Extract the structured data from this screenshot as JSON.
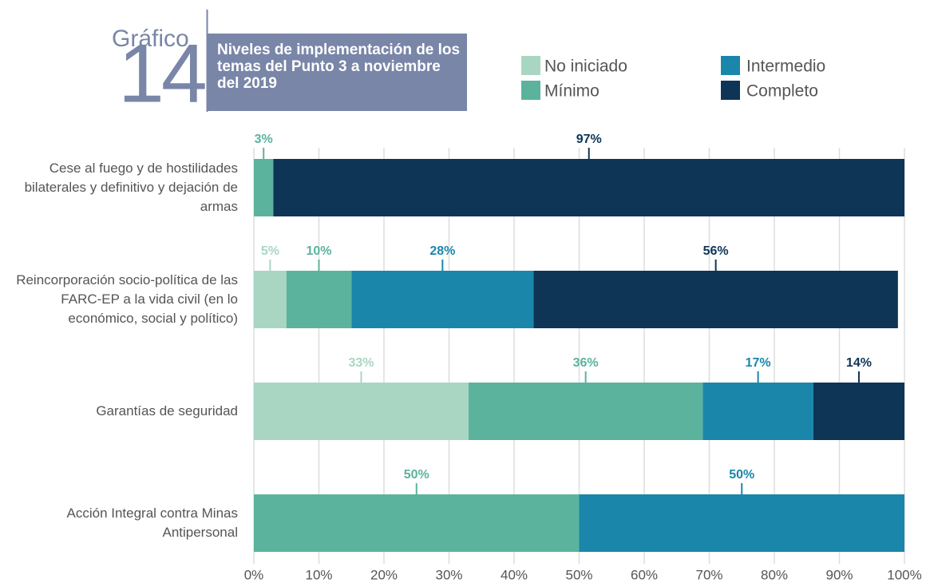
{
  "chart_data": {
    "type": "stacked-barh",
    "chart_label": "Gráfico",
    "chart_number": "14",
    "title": "Niveles de implementación de los temas del Punto 3 a noviembre del 2019",
    "categories": [
      "Cese al fuego y de hostilidades bilaterales y definitivo y dejación de armas",
      "Reincorporación socio-política de las FARC-EP a la vida civil (en lo económico, social y político)",
      "Garantías de seguridad",
      "Acción Integral contra Minas Antipersonal"
    ],
    "series": [
      {
        "name": "No iniciado",
        "color": "#a8d6c3",
        "values": [
          null,
          5,
          33,
          null
        ],
        "value_labels": [
          null,
          "5%",
          "33%",
          null
        ]
      },
      {
        "name": "Mínimo",
        "color": "#5bb39e",
        "values": [
          3,
          10,
          36,
          50
        ],
        "value_labels": [
          "3%",
          "10%",
          "36%",
          "50%"
        ]
      },
      {
        "name": "Intermedio",
        "color": "#1a87aa",
        "values": [
          null,
          28,
          17,
          50
        ],
        "value_labels": [
          null,
          "28%",
          "17%",
          "50%"
        ]
      },
      {
        "name": "Completo",
        "color": "#0f3556",
        "values": [
          97,
          56,
          14,
          null
        ],
        "value_labels": [
          "97%",
          "56%",
          "14%",
          null
        ]
      }
    ],
    "xlim": [
      0,
      100
    ],
    "xticks": [
      {
        "value": 0,
        "label": "0%"
      },
      {
        "value": 10,
        "label": "10%"
      },
      {
        "value": 20,
        "label": "20%"
      },
      {
        "value": 30,
        "label": "30%"
      },
      {
        "value": 40,
        "label": "40%"
      },
      {
        "value": 50,
        "label": "50%"
      },
      {
        "value": 60,
        "label": "60%"
      },
      {
        "value": 70,
        "label": "70%"
      },
      {
        "value": 80,
        "label": "80%"
      },
      {
        "value": 90,
        "label": "90%"
      },
      {
        "value": 100,
        "label": "100%"
      }
    ],
    "grid": true
  }
}
